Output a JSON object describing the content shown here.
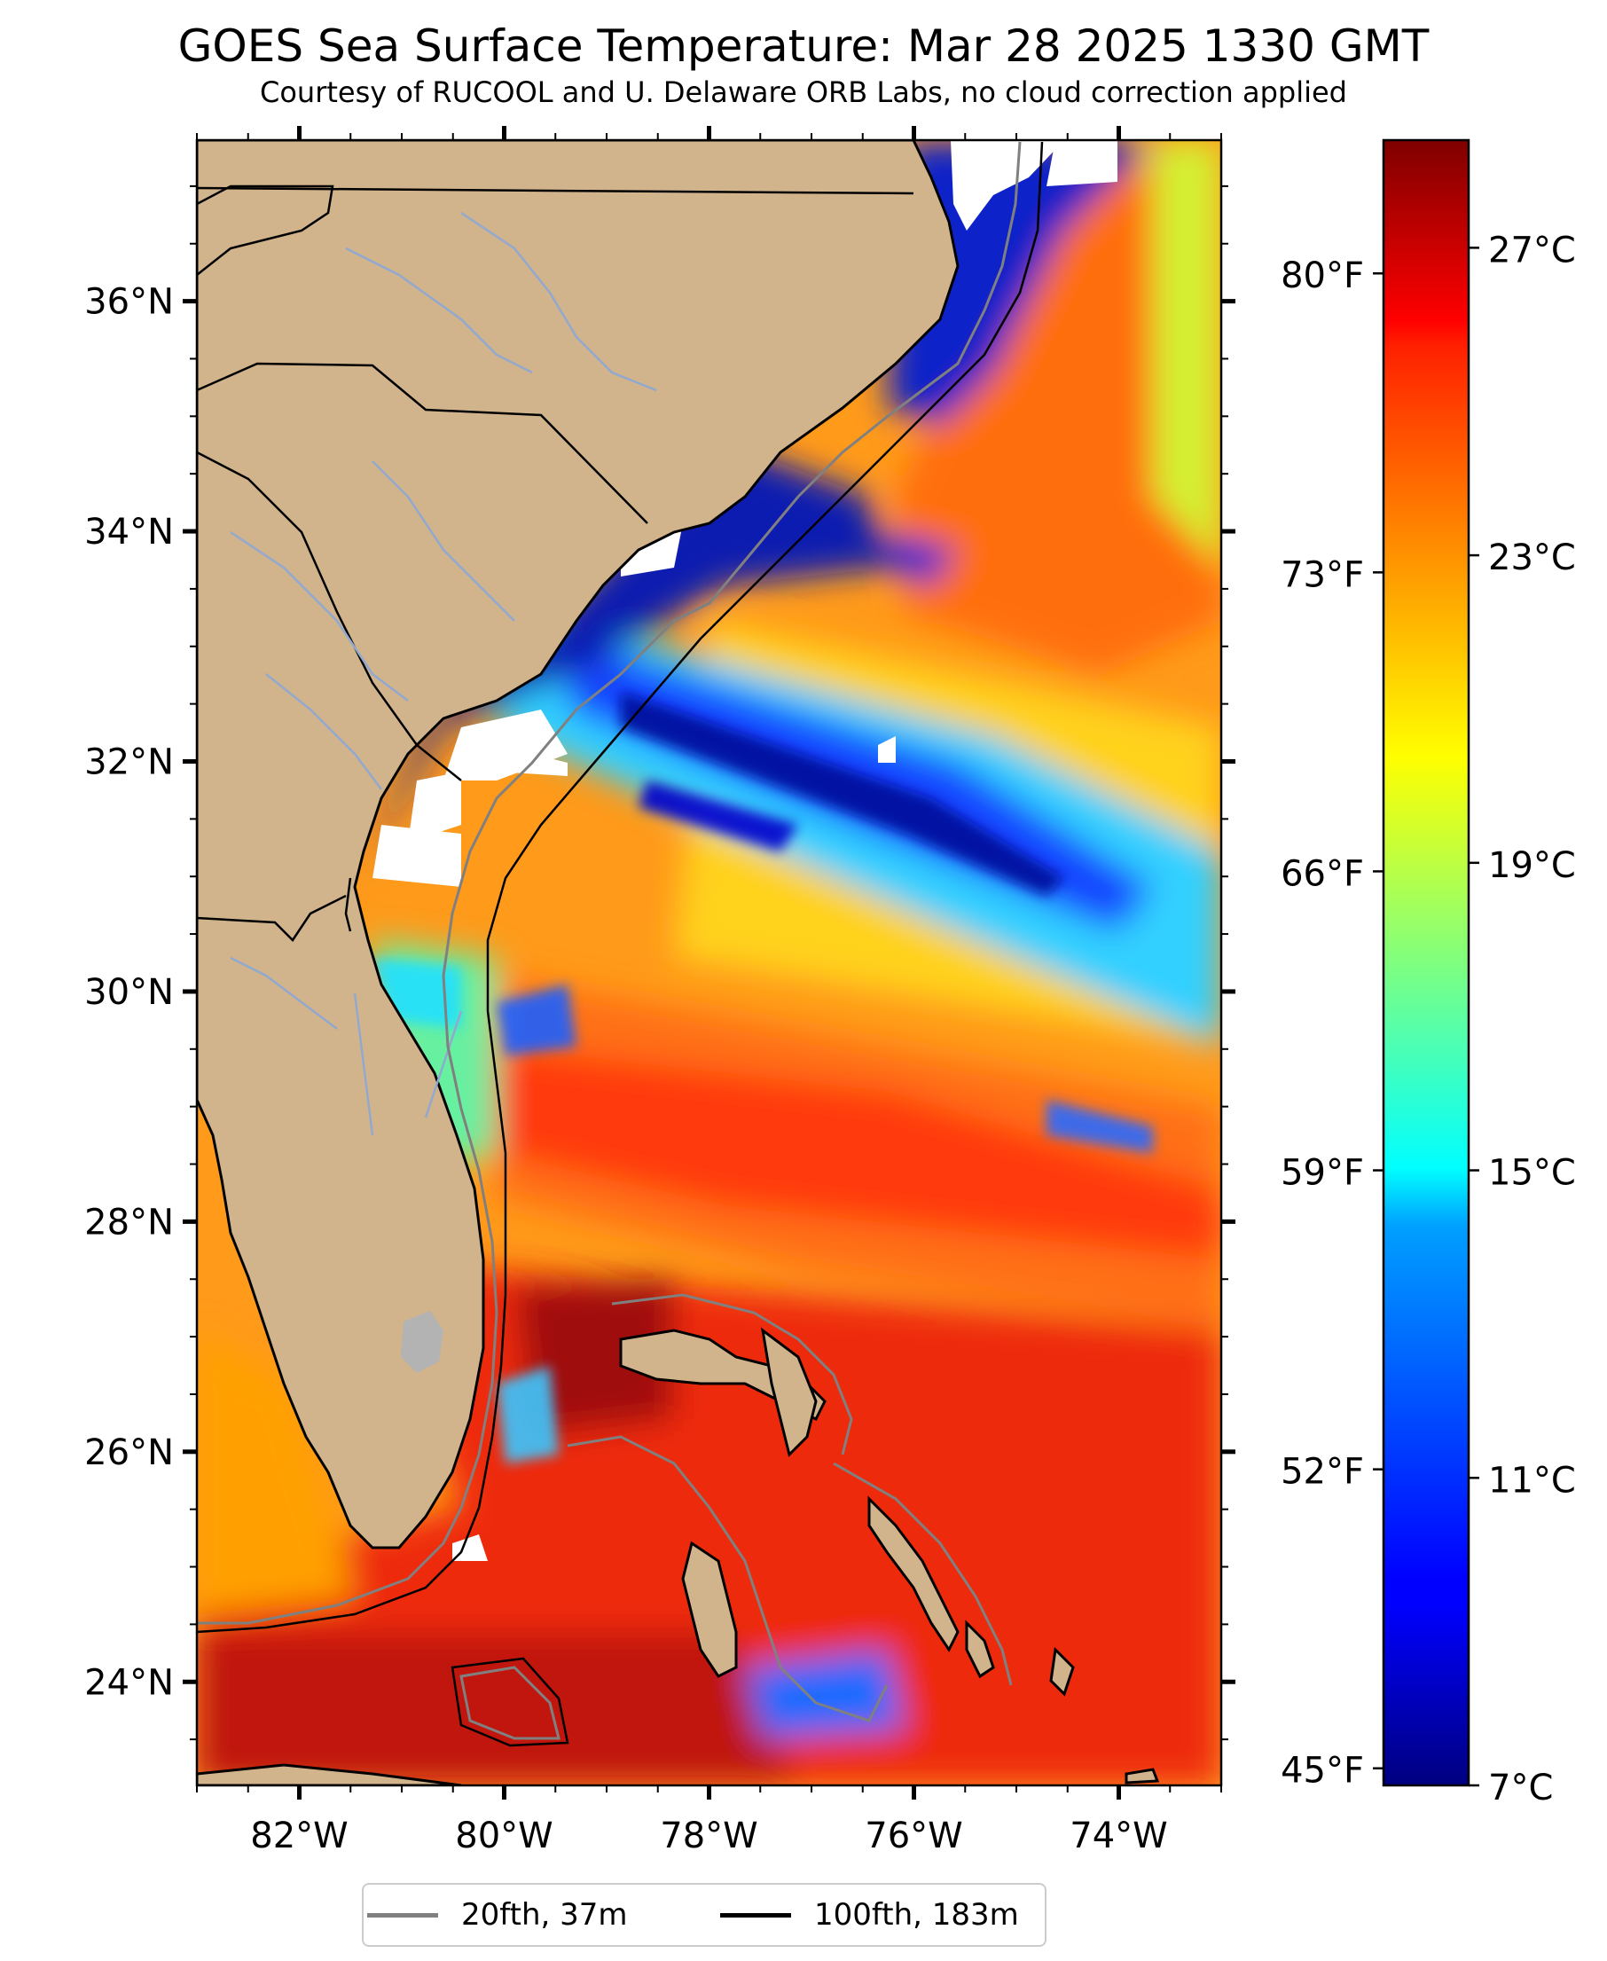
{
  "title": "GOES Sea Surface Temperature: Mar 28 2025 1330 GMT",
  "subtitle": "Courtesy of RUCOOL and U. Delaware ORB Labs, no cloud correction applied",
  "colors": {
    "land": "#d1b38c",
    "lake": "#b3b3b3",
    "cloud_mask": "#ffffff",
    "contour_20fth": "#808080",
    "contour_100fth": "#000000",
    "rivers": "#92a9cf",
    "state_lines": "#000000"
  },
  "icons": [
    "legend-line-gray",
    "legend-line-black"
  ],
  "map": {
    "projection": "plate-carree",
    "lon_range": [
      -83,
      -73
    ],
    "lat_range": [
      23.1,
      37.4
    ],
    "lon_ticks": [
      {
        "value": -82,
        "label": "82°W"
      },
      {
        "value": -80,
        "label": "80°W"
      },
      {
        "value": -78,
        "label": "78°W"
      },
      {
        "value": -76,
        "label": "76°W"
      },
      {
        "value": -74,
        "label": "74°W"
      }
    ],
    "lat_ticks": [
      {
        "value": 36,
        "label": "36°N"
      },
      {
        "value": 34,
        "label": "34°N"
      },
      {
        "value": 32,
        "label": "32°N"
      },
      {
        "value": 30,
        "label": "30°N"
      },
      {
        "value": 28,
        "label": "28°N"
      },
      {
        "value": 26,
        "label": "26°N"
      },
      {
        "value": 24,
        "label": "24°N"
      }
    ],
    "minor_ticks_per_interval": 4
  },
  "colorbar": {
    "colormap": "jet",
    "celsius_range": [
      7,
      28.4
    ],
    "celsius_ticks": [
      {
        "value": 27,
        "label": "27°C"
      },
      {
        "value": 23,
        "label": "23°C"
      },
      {
        "value": 19,
        "label": "19°C"
      },
      {
        "value": 15,
        "label": "15°C"
      },
      {
        "value": 11,
        "label": "11°C"
      },
      {
        "value": 7,
        "label": "7°C"
      }
    ],
    "fahrenheit_ticks": [
      {
        "value": 80,
        "label": "80°F"
      },
      {
        "value": 73,
        "label": "73°F"
      },
      {
        "value": 66,
        "label": "66°F"
      },
      {
        "value": 59,
        "label": "59°F"
      },
      {
        "value": 52,
        "label": "52°F"
      },
      {
        "value": 45,
        "label": "45°F"
      }
    ]
  },
  "legend": {
    "items": [
      {
        "label": "20fth, 37m",
        "color": "#808080"
      },
      {
        "label": "100fth, 183m",
        "color": "#000000"
      }
    ]
  }
}
